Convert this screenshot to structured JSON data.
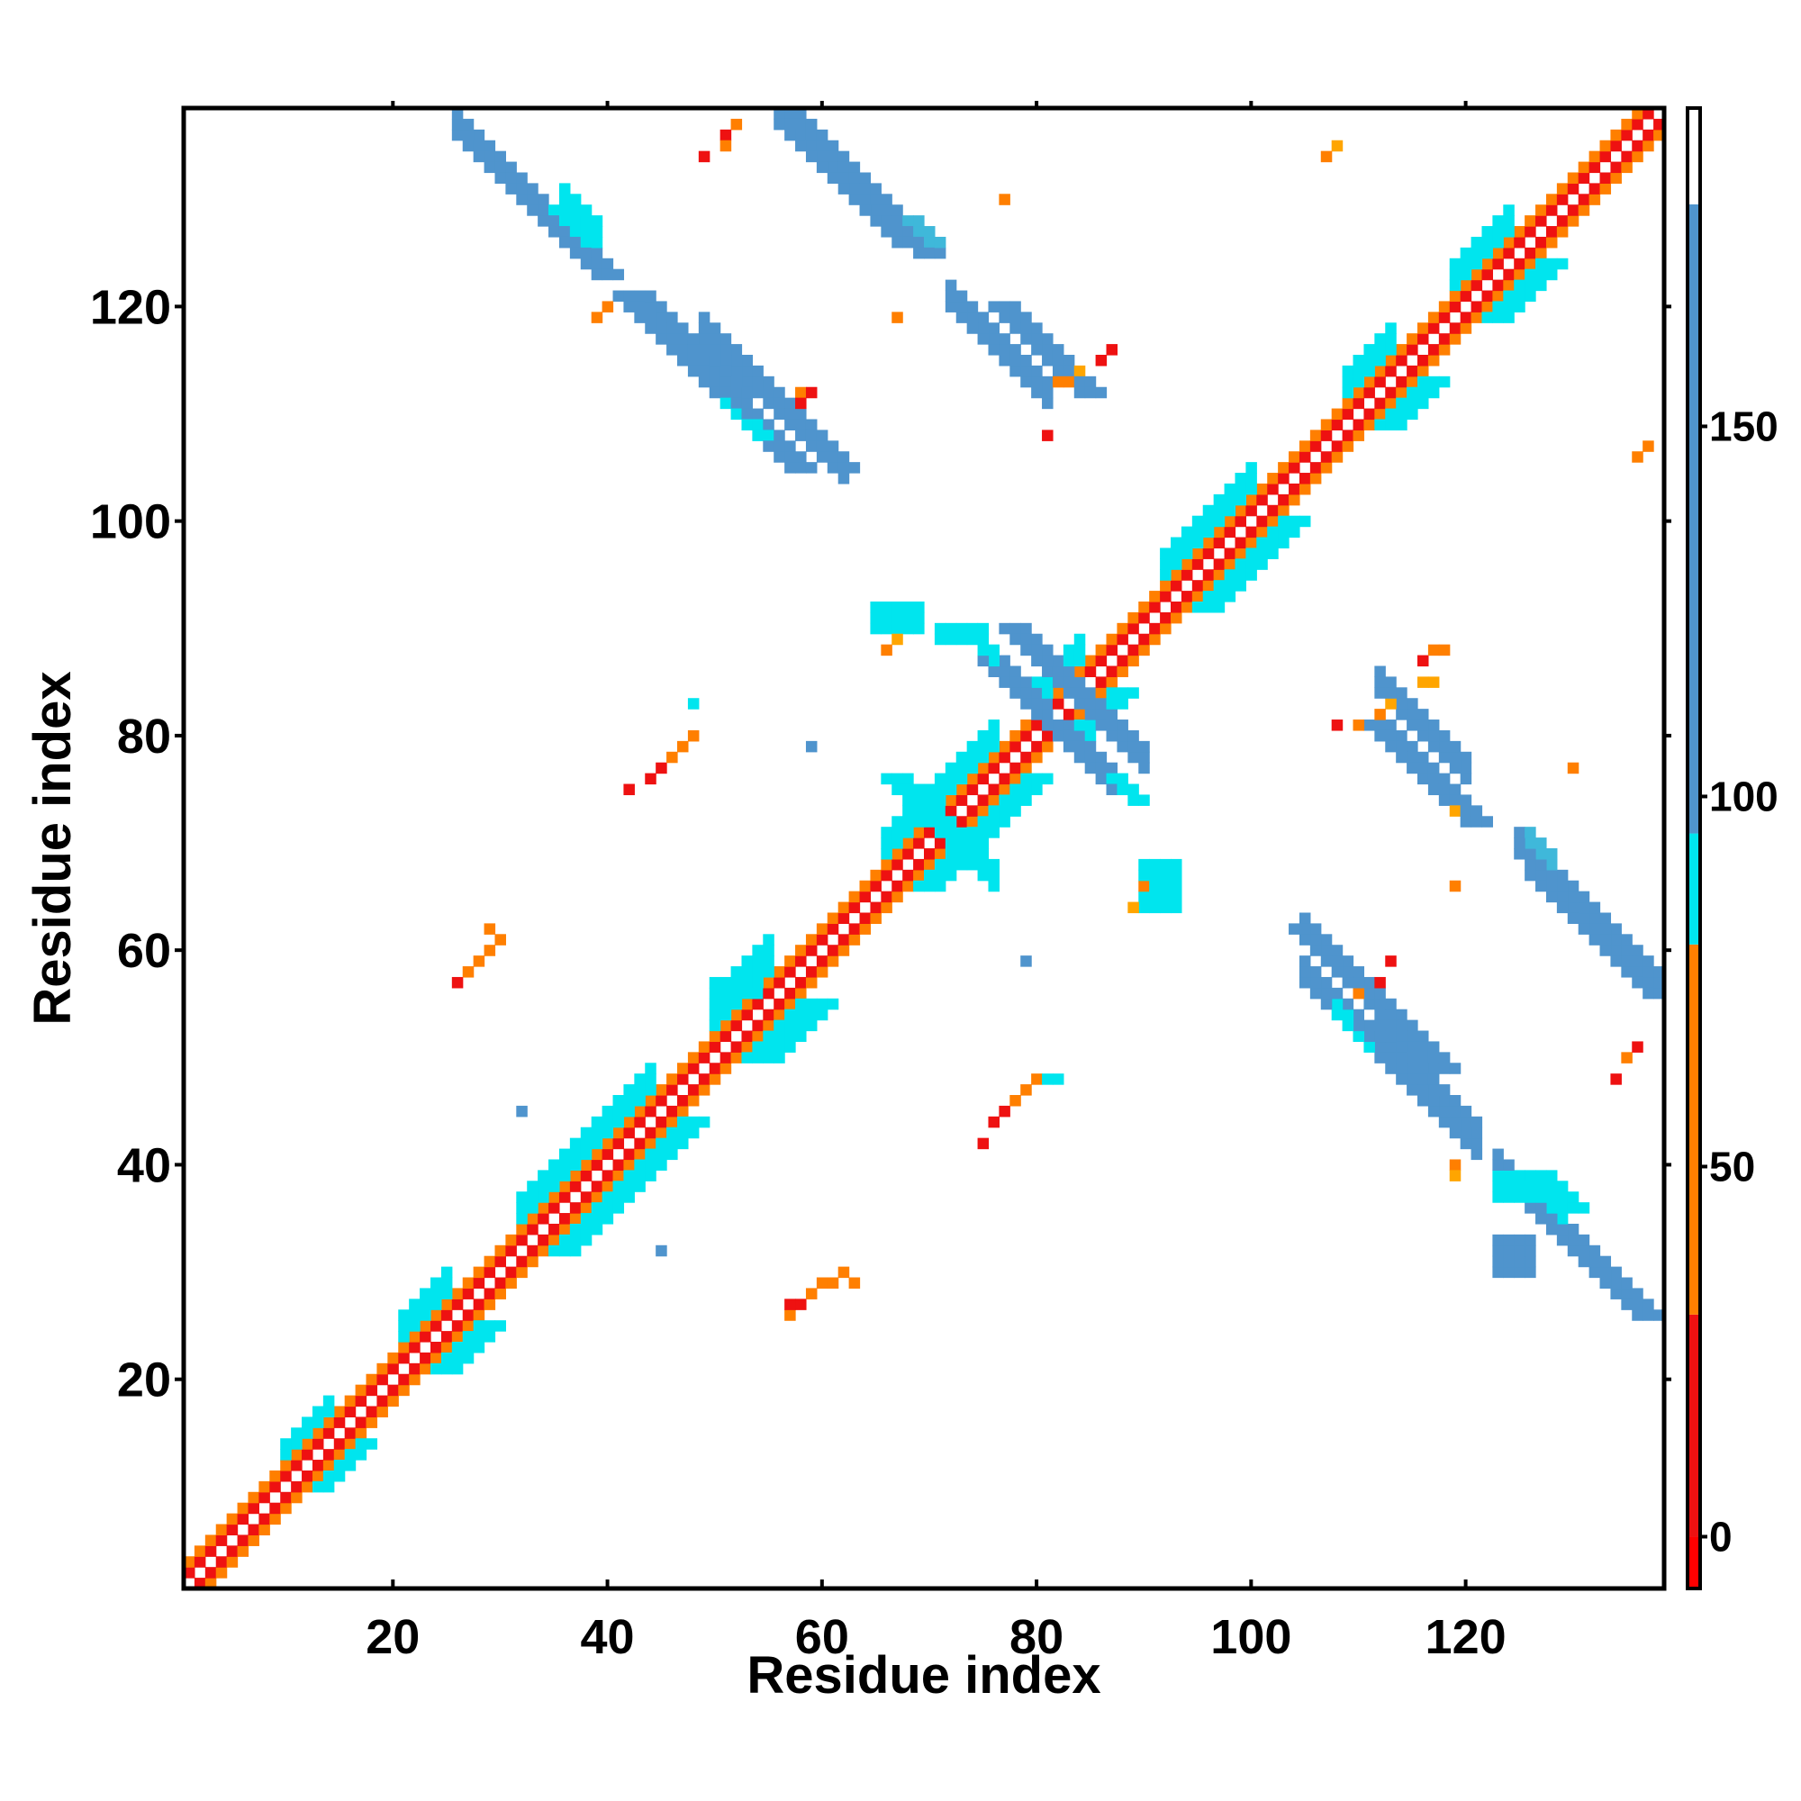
{
  "chart_data": {
    "type": "heatmap",
    "title": "",
    "xlabel": "Residue index",
    "ylabel": "Residue index",
    "xlim": [
      1,
      138
    ],
    "ylim": [
      1,
      138
    ],
    "xticks": [
      20,
      40,
      60,
      80,
      100,
      120
    ],
    "yticks": [
      20,
      40,
      60,
      80,
      100,
      120
    ],
    "symmetric": true,
    "colorbar": {
      "ticks": [
        0,
        50,
        100,
        150
      ],
      "range": [
        -7,
        193
      ],
      "bands": [
        {
          "from": -7,
          "to": 0,
          "color": "#ff0000"
        },
        {
          "from": 0,
          "to": 30,
          "color": "#ee1111"
        },
        {
          "from": 30,
          "to": 80,
          "color": "#ff7f00"
        },
        {
          "from": 80,
          "to": 95,
          "color": "#00e5ee"
        },
        {
          "from": 95,
          "to": 180,
          "color": "#4f94cd"
        },
        {
          "from": 180,
          "to": 193,
          "color": "#ffffff"
        }
      ]
    },
    "cell_colors": {
      "red": "#ee1111",
      "orange": "#ff7f00",
      "amber": "#ffa500",
      "cyan": "#00e5ee",
      "sky": "#3fb8da",
      "steel": "#4f94cd"
    },
    "band_offsets": [
      {
        "offset": 1,
        "color": "red"
      },
      {
        "offset": 2,
        "color": "orange"
      }
    ],
    "diagonal_regions": [
      {
        "from": 10,
        "to": 14,
        "offset": 1,
        "color": "cyan"
      },
      {
        "from": 21,
        "to": 25,
        "offset": 2,
        "color": "cyan"
      },
      {
        "from": 32,
        "to": 40,
        "offset": 2,
        "color": "cyan"
      },
      {
        "from": 41,
        "to": 44,
        "offset": 2,
        "color": "cyan"
      },
      {
        "from": 50,
        "to": 55,
        "offset": 3,
        "color": "cyan"
      },
      {
        "from": 66,
        "to": 76,
        "offset": 2,
        "color": "cyan"
      },
      {
        "from": 80,
        "to": 84,
        "offset": 2,
        "color": "cyan"
      },
      {
        "from": 92,
        "to": 100,
        "offset": 2,
        "color": "cyan"
      },
      {
        "from": 109,
        "to": 113,
        "offset": 2,
        "color": "cyan"
      },
      {
        "from": 119,
        "to": 124,
        "offset": 2,
        "color": "cyan"
      }
    ],
    "antiparallel_segments": [
      {
        "x_from": 27,
        "y_from": 135,
        "length": 13,
        "width": 3,
        "color": "steel"
      },
      {
        "x_from": 35,
        "y_from": 129,
        "length": 4,
        "width": 2,
        "color": "cyan"
      },
      {
        "x_from": 41,
        "y_from": 121,
        "length": 17,
        "width": 3,
        "color": "steel"
      },
      {
        "x_from": 51,
        "y_from": 111,
        "length": 4,
        "width": 2,
        "color": "cyan"
      },
      {
        "x_from": 56,
        "y_from": 138,
        "length": 14,
        "width": 3,
        "color": "steel"
      },
      {
        "x_from": 68,
        "y_from": 128,
        "length": 3,
        "width": 2,
        "color": "sky"
      },
      {
        "x_from": 76,
        "y_from": 120,
        "length": 9,
        "width": 3,
        "color": "steel"
      },
      {
        "x_from": 54,
        "y_from": 112,
        "length": 8,
        "width": 3,
        "color": "steel"
      },
      {
        "x_from": 77,
        "y_from": 90,
        "length": 7,
        "width": 3,
        "color": "steel"
      },
      {
        "x_from": 81,
        "y_from": 81,
        "length": 7,
        "width": 3,
        "color": "steel"
      },
      {
        "x_from": 87,
        "y_from": 76,
        "length": 3,
        "width": 2,
        "color": "cyan"
      },
      {
        "x_from": 66,
        "y_from": 76,
        "length": 8,
        "width": 3,
        "color": "cyan"
      },
      {
        "x_from": 104,
        "y_from": 62,
        "length": 14,
        "width": 3,
        "color": "steel"
      },
      {
        "x_from": 110,
        "y_from": 53,
        "length": 10,
        "width": 3,
        "color": "steel"
      },
      {
        "x_from": 111,
        "y_from": 81,
        "length": 10,
        "width": 3,
        "color": "steel"
      },
      {
        "x_from": 126,
        "y_from": 67,
        "length": 12,
        "width": 3,
        "color": "steel"
      },
      {
        "x_from": 126,
        "y_from": 39,
        "length": 4,
        "width": 3,
        "color": "cyan"
      },
      {
        "x_from": 128,
        "y_from": 34,
        "length": 9,
        "width": 3,
        "color": "steel"
      }
    ],
    "blocks": [
      {
        "x": [
          65,
          69
        ],
        "y": [
          90,
          92
        ],
        "color": "cyan"
      },
      {
        "x": [
          71,
          75
        ],
        "y": [
          89,
          90
        ],
        "color": "cyan"
      },
      {
        "x": [
          90,
          93
        ],
        "y": [
          64,
          68
        ],
        "color": "cyan"
      },
      {
        "x": [
          50,
          54
        ],
        "y": [
          56,
          57
        ],
        "color": "cyan"
      },
      {
        "x": [
          123,
          127
        ],
        "y": [
          37,
          39
        ],
        "color": "cyan"
      },
      {
        "x": [
          123,
          126
        ],
        "y": [
          30,
          33
        ],
        "color": "steel"
      }
    ],
    "scatter_cells": [
      {
        "x": 52,
        "y": 137,
        "color": "orange"
      },
      {
        "x": 51,
        "y": 136,
        "color": "red"
      },
      {
        "x": 51,
        "y": 135,
        "color": "orange"
      },
      {
        "x": 49,
        "y": 134,
        "color": "red"
      },
      {
        "x": 77,
        "y": 130,
        "color": "orange"
      },
      {
        "x": 108,
        "y": 135,
        "color": "amber"
      },
      {
        "x": 107,
        "y": 134,
        "color": "orange"
      },
      {
        "x": 67,
        "y": 119,
        "color": "orange"
      },
      {
        "x": 40,
        "y": 120,
        "color": "orange"
      },
      {
        "x": 39,
        "y": 119,
        "color": "orange"
      },
      {
        "x": 58,
        "y": 112,
        "color": "orange"
      },
      {
        "x": 59,
        "y": 112,
        "color": "red"
      },
      {
        "x": 58,
        "y": 111,
        "color": "red"
      },
      {
        "x": 82,
        "y": 113,
        "color": "orange"
      },
      {
        "x": 83,
        "y": 113,
        "color": "orange"
      },
      {
        "x": 84,
        "y": 114,
        "color": "amber"
      },
      {
        "x": 86,
        "y": 115,
        "color": "red"
      },
      {
        "x": 87,
        "y": 116,
        "color": "red"
      },
      {
        "x": 81,
        "y": 108,
        "color": "red"
      },
      {
        "x": 136,
        "y": 106,
        "color": "orange"
      },
      {
        "x": 137,
        "y": 107,
        "color": "orange"
      },
      {
        "x": 116,
        "y": 87,
        "color": "red"
      },
      {
        "x": 117,
        "y": 88,
        "color": "orange"
      },
      {
        "x": 118,
        "y": 88,
        "color": "orange"
      },
      {
        "x": 116,
        "y": 85,
        "color": "amber"
      },
      {
        "x": 117,
        "y": 85,
        "color": "amber"
      },
      {
        "x": 108,
        "y": 81,
        "color": "red"
      },
      {
        "x": 110,
        "y": 81,
        "color": "orange"
      },
      {
        "x": 112,
        "y": 82,
        "color": "orange"
      },
      {
        "x": 113,
        "y": 83,
        "color": "amber"
      },
      {
        "x": 130,
        "y": 77,
        "color": "orange"
      },
      {
        "x": 119,
        "y": 73,
        "color": "amber"
      },
      {
        "x": 119,
        "y": 66,
        "color": "orange"
      },
      {
        "x": 42,
        "y": 75,
        "color": "red"
      },
      {
        "x": 44,
        "y": 76,
        "color": "red"
      },
      {
        "x": 45,
        "y": 77,
        "color": "red"
      },
      {
        "x": 46,
        "y": 78,
        "color": "orange"
      },
      {
        "x": 47,
        "y": 79,
        "color": "orange"
      },
      {
        "x": 48,
        "y": 80,
        "color": "orange"
      },
      {
        "x": 48,
        "y": 83,
        "color": "cyan"
      },
      {
        "x": 59,
        "y": 79,
        "color": "steel"
      },
      {
        "x": 79,
        "y": 59,
        "color": "steel"
      },
      {
        "x": 26,
        "y": 57,
        "color": "red"
      },
      {
        "x": 27,
        "y": 58,
        "color": "orange"
      },
      {
        "x": 28,
        "y": 59,
        "color": "orange"
      },
      {
        "x": 29,
        "y": 60,
        "color": "orange"
      },
      {
        "x": 30,
        "y": 61,
        "color": "orange"
      },
      {
        "x": 29,
        "y": 62,
        "color": "orange"
      },
      {
        "x": 112,
        "y": 57,
        "color": "red"
      },
      {
        "x": 113,
        "y": 59,
        "color": "red"
      },
      {
        "x": 110,
        "y": 56,
        "color": "orange"
      },
      {
        "x": 135,
        "y": 50,
        "color": "orange"
      },
      {
        "x": 136,
        "y": 51,
        "color": "red"
      },
      {
        "x": 134,
        "y": 48,
        "color": "red"
      },
      {
        "x": 75,
        "y": 42,
        "color": "red"
      },
      {
        "x": 76,
        "y": 44,
        "color": "red"
      },
      {
        "x": 77,
        "y": 45,
        "color": "red"
      },
      {
        "x": 78,
        "y": 46,
        "color": "orange"
      },
      {
        "x": 79,
        "y": 47,
        "color": "orange"
      },
      {
        "x": 80,
        "y": 48,
        "color": "orange"
      },
      {
        "x": 81,
        "y": 48,
        "color": "cyan"
      },
      {
        "x": 82,
        "y": 48,
        "color": "cyan"
      },
      {
        "x": 32,
        "y": 45,
        "color": "steel"
      },
      {
        "x": 45,
        "y": 32,
        "color": "steel"
      },
      {
        "x": 119,
        "y": 40,
        "color": "orange"
      },
      {
        "x": 119,
        "y": 39,
        "color": "amber"
      },
      {
        "x": 57,
        "y": 26,
        "color": "orange"
      },
      {
        "x": 57,
        "y": 27,
        "color": "red"
      },
      {
        "x": 58,
        "y": 27,
        "color": "red"
      },
      {
        "x": 59,
        "y": 28,
        "color": "orange"
      },
      {
        "x": 60,
        "y": 29,
        "color": "orange"
      },
      {
        "x": 61,
        "y": 29,
        "color": "orange"
      },
      {
        "x": 62,
        "y": 30,
        "color": "orange"
      },
      {
        "x": 63,
        "y": 29,
        "color": "orange"
      },
      {
        "x": 66,
        "y": 88,
        "color": "orange"
      },
      {
        "x": 67,
        "y": 89,
        "color": "amber"
      },
      {
        "x": 90,
        "y": 66,
        "color": "orange"
      },
      {
        "x": 89,
        "y": 64,
        "color": "amber"
      }
    ]
  }
}
